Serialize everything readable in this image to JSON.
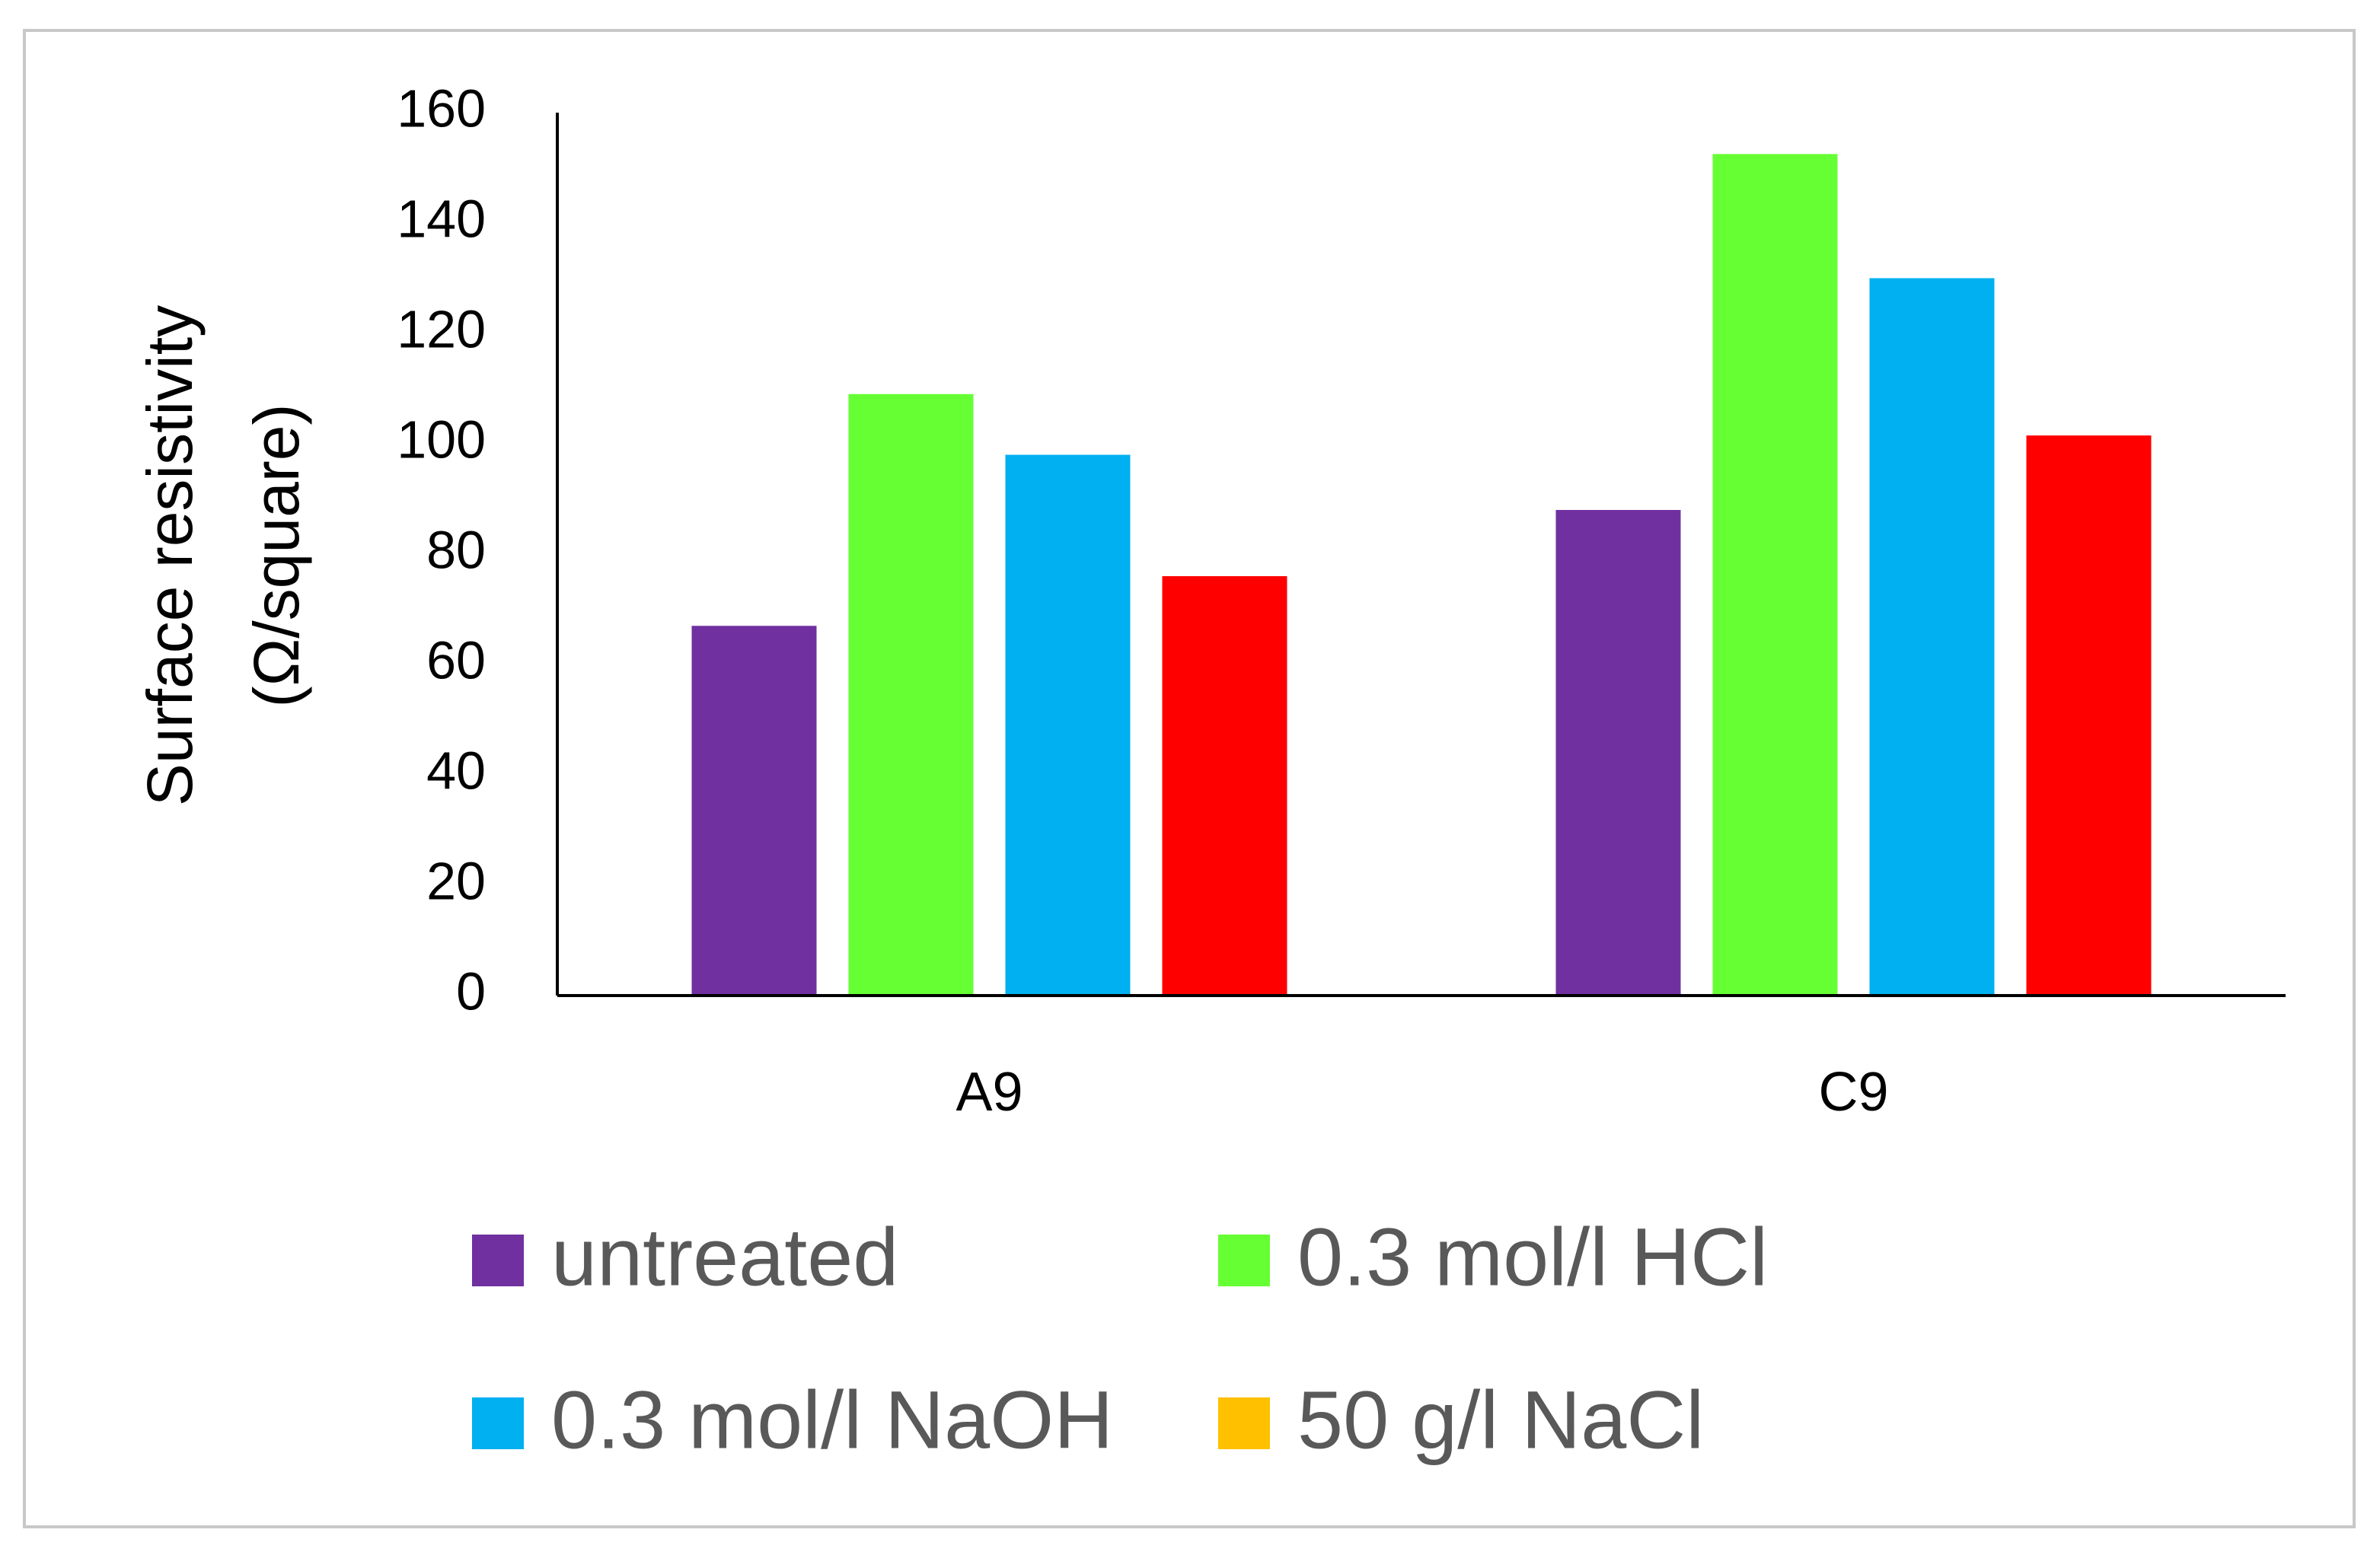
{
  "chart_data": {
    "type": "bar",
    "ylabel": [
      "Surface resistivity",
      "(Ω/square)"
    ],
    "categories": [
      "A9",
      "C9"
    ],
    "series": [
      {
        "name": "untreated",
        "color": "#7030a0",
        "values": [
          67,
          88
        ]
      },
      {
        "name": "0.3 mol/l HCl",
        "color": "#66ff33",
        "values": [
          109,
          152.5
        ]
      },
      {
        "name": "0.3 mol/l NaOH",
        "color": "#00b0f0",
        "values": [
          98,
          130
        ]
      },
      {
        "name": "50 g/l NaCl",
        "color": "#ff0000",
        "legend_color": "#ffc000",
        "values": [
          76,
          101.5
        ]
      }
    ],
    "ylim": [
      0,
      160
    ],
    "yticks": [
      0,
      20,
      40,
      60,
      80,
      100,
      120,
      140,
      160
    ],
    "grid": false,
    "legend": "bottom"
  }
}
